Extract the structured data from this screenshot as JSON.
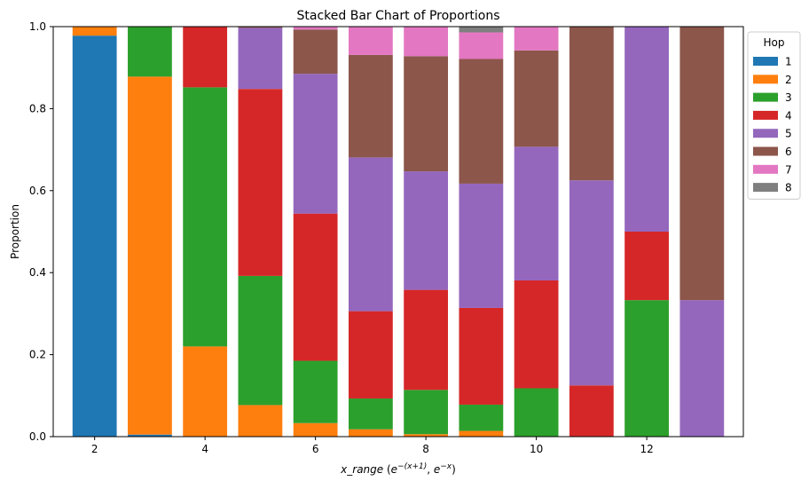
{
  "chart_data": {
    "type": "bar",
    "stacked": true,
    "title": "Stacked Bar Chart of Proportions",
    "xlabel": "x_range (e^{-(x+1)}, e^{-x})",
    "xlabel_parts": {
      "name": "x_range",
      "open": " (",
      "base1": "e",
      "exp1": "−(x+1)",
      "sep": ", ",
      "base2": "e",
      "exp2": "−x",
      "close": ")"
    },
    "ylabel": "Proportion",
    "xlim": [
      1.25,
      13.75
    ],
    "ylim": [
      0,
      1
    ],
    "xticks": [
      2,
      4,
      6,
      8,
      10,
      12
    ],
    "yticks": [
      0.0,
      0.2,
      0.4,
      0.6,
      0.8,
      1.0
    ],
    "bar_width": 0.8,
    "legend": {
      "title": "Hop",
      "placement": "outside-top-right"
    },
    "categories": [
      2,
      3,
      4,
      5,
      6,
      7,
      8,
      9,
      10,
      11,
      12,
      13
    ],
    "series": [
      {
        "name": "1",
        "color": "#1f77b4",
        "values": [
          0.978,
          0.005,
          0,
          0,
          0,
          0,
          0,
          0,
          0,
          0,
          0,
          0
        ]
      },
      {
        "name": "2",
        "color": "#ff7f0e",
        "values": [
          0.022,
          0.873,
          0.22,
          0.077,
          0.033,
          0.018,
          0.006,
          0.014,
          0,
          0,
          0,
          0
        ]
      },
      {
        "name": "3",
        "color": "#2ca02c",
        "values": [
          0,
          0.122,
          0.632,
          0.315,
          0.152,
          0.075,
          0.108,
          0.064,
          0.118,
          0,
          0.333,
          0
        ]
      },
      {
        "name": "4",
        "color": "#d62728",
        "values": [
          0,
          0,
          0.148,
          0.456,
          0.359,
          0.213,
          0.244,
          0.236,
          0.263,
          0.125,
          0.167,
          0
        ]
      },
      {
        "name": "5",
        "color": "#9467bd",
        "values": [
          0,
          0,
          0,
          0.149,
          0.341,
          0.375,
          0.289,
          0.303,
          0.326,
          0.5,
          0.5,
          0.333
        ]
      },
      {
        "name": "6",
        "color": "#8c564b",
        "values": [
          0,
          0,
          0,
          0.003,
          0.108,
          0.25,
          0.281,
          0.304,
          0.235,
          0.375,
          0,
          0.667
        ]
      },
      {
        "name": "7",
        "color": "#e377c2",
        "values": [
          0,
          0,
          0,
          0,
          0.007,
          0.069,
          0.072,
          0.065,
          0.058,
          0,
          0,
          0
        ]
      },
      {
        "name": "8",
        "color": "#7f7f7f",
        "values": [
          0,
          0,
          0,
          0,
          0,
          0,
          0,
          0.014,
          0,
          0,
          0,
          0
        ]
      }
    ]
  }
}
